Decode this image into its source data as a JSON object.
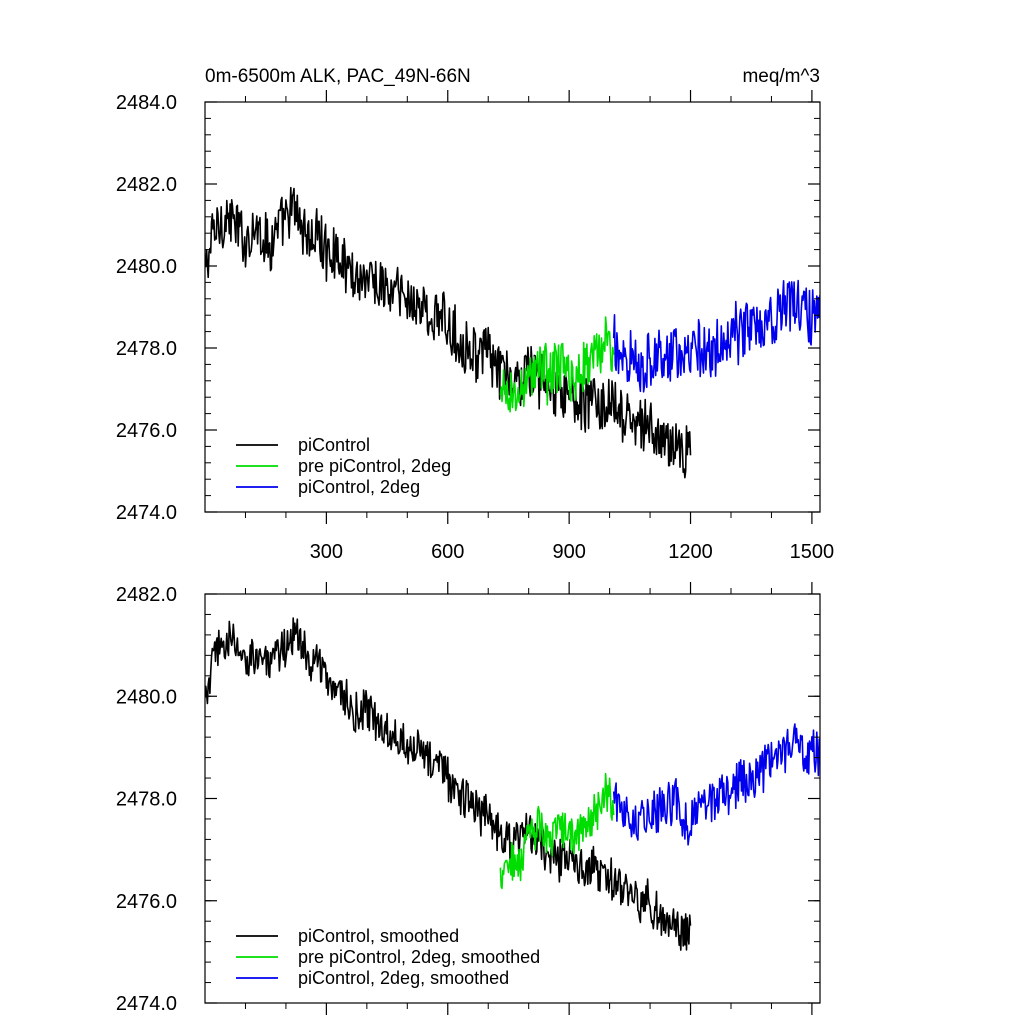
{
  "chart_data": [
    {
      "type": "line",
      "title": "0m-6500m ALK, PAC_49N-66N",
      "units": "meq/m^3",
      "xlabel": "",
      "ylabel": "",
      "xlim": [
        0,
        1520
      ],
      "ylim": [
        2474.0,
        2484.0
      ],
      "xticks": [
        300,
        600,
        900,
        1200,
        1500
      ],
      "yticks": [
        2474.0,
        2476.0,
        2478.0,
        2480.0,
        2482.0,
        2484.0
      ],
      "ytick_labels": [
        "2474.0",
        "2476.0",
        "2478.0",
        "2480.0",
        "2482.0",
        "2484.0"
      ],
      "show_xtick_labels": true,
      "legend_position": "bottom-left",
      "series": [
        {
          "name": "piControl",
          "color": "#000000",
          "x": [
            0,
            20,
            40,
            60,
            80,
            100,
            120,
            140,
            160,
            180,
            200,
            220,
            240,
            260,
            280,
            300,
            320,
            340,
            360,
            380,
            400,
            420,
            440,
            460,
            480,
            500,
            520,
            540,
            560,
            580,
            600,
            620,
            640,
            660,
            680,
            700,
            720,
            740,
            760,
            780,
            800,
            820,
            840,
            860,
            880,
            900,
            920,
            940,
            960,
            980,
            1000,
            1020,
            1040,
            1060,
            1080,
            1100,
            1120,
            1140,
            1160,
            1180,
            1200
          ],
          "values": [
            2479.8,
            2480.8,
            2481.1,
            2481.2,
            2480.9,
            2480.6,
            2481.0,
            2480.8,
            2480.5,
            2480.9,
            2481.1,
            2481.4,
            2481.0,
            2480.6,
            2480.8,
            2480.3,
            2480.4,
            2480.1,
            2479.9,
            2479.7,
            2479.8,
            2479.6,
            2479.5,
            2479.3,
            2479.4,
            2479.1,
            2479.2,
            2478.9,
            2478.7,
            2478.8,
            2478.5,
            2478.3,
            2478.1,
            2478.0,
            2477.8,
            2477.9,
            2477.5,
            2477.3,
            2477.1,
            2477.2,
            2477.5,
            2477.3,
            2477.1,
            2476.9,
            2476.8,
            2477.0,
            2476.7,
            2476.6,
            2476.8,
            2476.5,
            2476.6,
            2476.4,
            2476.2,
            2476.3,
            2476.0,
            2476.1,
            2475.8,
            2475.6,
            2475.7,
            2475.4,
            2475.8
          ],
          "noise_amplitude": 0.9
        },
        {
          "name": "pre piControl, 2deg",
          "color": "#00dd00",
          "x": [
            730,
            750,
            770,
            790,
            810,
            830,
            850,
            870,
            890,
            910,
            930,
            950,
            970,
            990,
            1010
          ],
          "values": [
            2476.6,
            2477.0,
            2476.7,
            2477.2,
            2477.4,
            2477.6,
            2477.3,
            2477.6,
            2477.4,
            2477.2,
            2477.5,
            2477.7,
            2477.9,
            2478.2,
            2477.9
          ],
          "noise_amplitude": 0.9
        },
        {
          "name": "piControl, 2deg",
          "color": "#0000ee",
          "x": [
            1010,
            1040,
            1070,
            1100,
            1130,
            1160,
            1190,
            1220,
            1250,
            1280,
            1310,
            1340,
            1370,
            1400,
            1430,
            1460,
            1490,
            1520
          ],
          "values": [
            2478.0,
            2477.9,
            2477.6,
            2477.8,
            2477.7,
            2478.0,
            2477.6,
            2477.9,
            2478.0,
            2478.1,
            2478.3,
            2478.5,
            2478.6,
            2478.8,
            2479.0,
            2479.1,
            2478.9,
            2478.8
          ],
          "noise_amplitude": 1.0
        }
      ]
    },
    {
      "type": "line",
      "title": "",
      "xlabel": "",
      "ylabel": "",
      "xlim": [
        0,
        1520
      ],
      "ylim": [
        2474.0,
        2482.0
      ],
      "xticks": [
        300,
        600,
        900,
        1200,
        1500
      ],
      "yticks": [
        2474.0,
        2476.0,
        2478.0,
        2480.0,
        2482.0
      ],
      "ytick_labels": [
        "2474.0",
        "2476.0",
        "2478.0",
        "2480.0",
        "2482.0"
      ],
      "show_xtick_labels": false,
      "legend_position": "bottom-left",
      "series": [
        {
          "name": "piControl, smoothed",
          "color": "#000000",
          "x": [
            0,
            20,
            40,
            60,
            80,
            100,
            120,
            140,
            160,
            180,
            200,
            220,
            240,
            260,
            280,
            300,
            320,
            340,
            360,
            380,
            400,
            420,
            440,
            460,
            480,
            500,
            520,
            540,
            560,
            580,
            600,
            620,
            640,
            660,
            680,
            700,
            720,
            740,
            760,
            780,
            800,
            820,
            840,
            860,
            880,
            900,
            920,
            940,
            960,
            980,
            1000,
            1020,
            1040,
            1060,
            1080,
            1100,
            1120,
            1140,
            1160,
            1180,
            1200
          ],
          "values": [
            2479.8,
            2480.7,
            2481.0,
            2481.1,
            2480.9,
            2480.6,
            2480.9,
            2480.8,
            2480.5,
            2480.8,
            2481.0,
            2481.3,
            2481.0,
            2480.6,
            2480.7,
            2480.3,
            2480.3,
            2480.0,
            2479.8,
            2479.6,
            2479.7,
            2479.5,
            2479.4,
            2479.3,
            2479.3,
            2479.0,
            2479.1,
            2478.8,
            2478.7,
            2478.7,
            2478.4,
            2478.2,
            2478.0,
            2477.9,
            2477.7,
            2477.8,
            2477.4,
            2477.3,
            2477.1,
            2477.2,
            2477.4,
            2477.2,
            2477.0,
            2476.9,
            2476.8,
            2476.9,
            2476.7,
            2476.6,
            2476.7,
            2476.4,
            2476.5,
            2476.3,
            2476.1,
            2476.2,
            2475.9,
            2476.0,
            2475.7,
            2475.6,
            2475.6,
            2475.3,
            2475.5
          ],
          "noise_amplitude": 0.55
        },
        {
          "name": "pre piControl, 2deg, smoothed",
          "color": "#00dd00",
          "x": [
            730,
            750,
            770,
            790,
            810,
            830,
            850,
            870,
            890,
            910,
            930,
            950,
            970,
            990,
            1010
          ],
          "values": [
            2476.5,
            2476.9,
            2476.6,
            2477.0,
            2477.3,
            2477.5,
            2477.2,
            2477.5,
            2477.3,
            2477.2,
            2477.4,
            2477.6,
            2477.8,
            2478.2,
            2477.9
          ],
          "noise_amplitude": 0.55
        },
        {
          "name": "piControl, 2deg, smoothed",
          "color": "#0000ee",
          "x": [
            1010,
            1040,
            1070,
            1100,
            1130,
            1160,
            1190,
            1220,
            1250,
            1280,
            1310,
            1340,
            1370,
            1400,
            1430,
            1460,
            1490,
            1520
          ],
          "values": [
            2478.0,
            2477.8,
            2477.6,
            2477.8,
            2477.7,
            2478.0,
            2477.5,
            2477.8,
            2477.9,
            2478.0,
            2478.2,
            2478.4,
            2478.5,
            2478.7,
            2478.9,
            2479.1,
            2478.9,
            2478.9
          ],
          "noise_amplitude": 0.6
        }
      ]
    }
  ]
}
